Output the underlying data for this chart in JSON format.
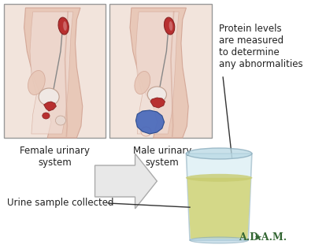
{
  "background_color": "#ffffff",
  "female_label": "Female urinary\nsystem",
  "male_label": "Male urinary\nsystem",
  "protein_text": "Protein levels\nare measured\nto determine\nany abnormalities",
  "urine_label": "Urine sample collected",
  "adam_text": "A.D.A.M.",
  "skin_color": "#e8c8b8",
  "skin_dark": "#d4a898",
  "skin_light": "#f0ddd5",
  "red_organ": "#b83030",
  "red_dark": "#882222",
  "blue_organ": "#4466bb",
  "blue_dark": "#224488",
  "white_organ": "#f0e8e4",
  "box_bg": "#f2e4dc",
  "box_edge": "#999999",
  "cup_clear": "#cce8f0",
  "cup_edge": "#88aabb",
  "urine_yellow": "#d4d888",
  "urine_dark": "#c0c870",
  "arrow_fill": "#e8e8e8",
  "arrow_edge": "#aaaaaa",
  "text_color": "#222222",
  "line_color": "#333333",
  "adam_color": "#336633"
}
